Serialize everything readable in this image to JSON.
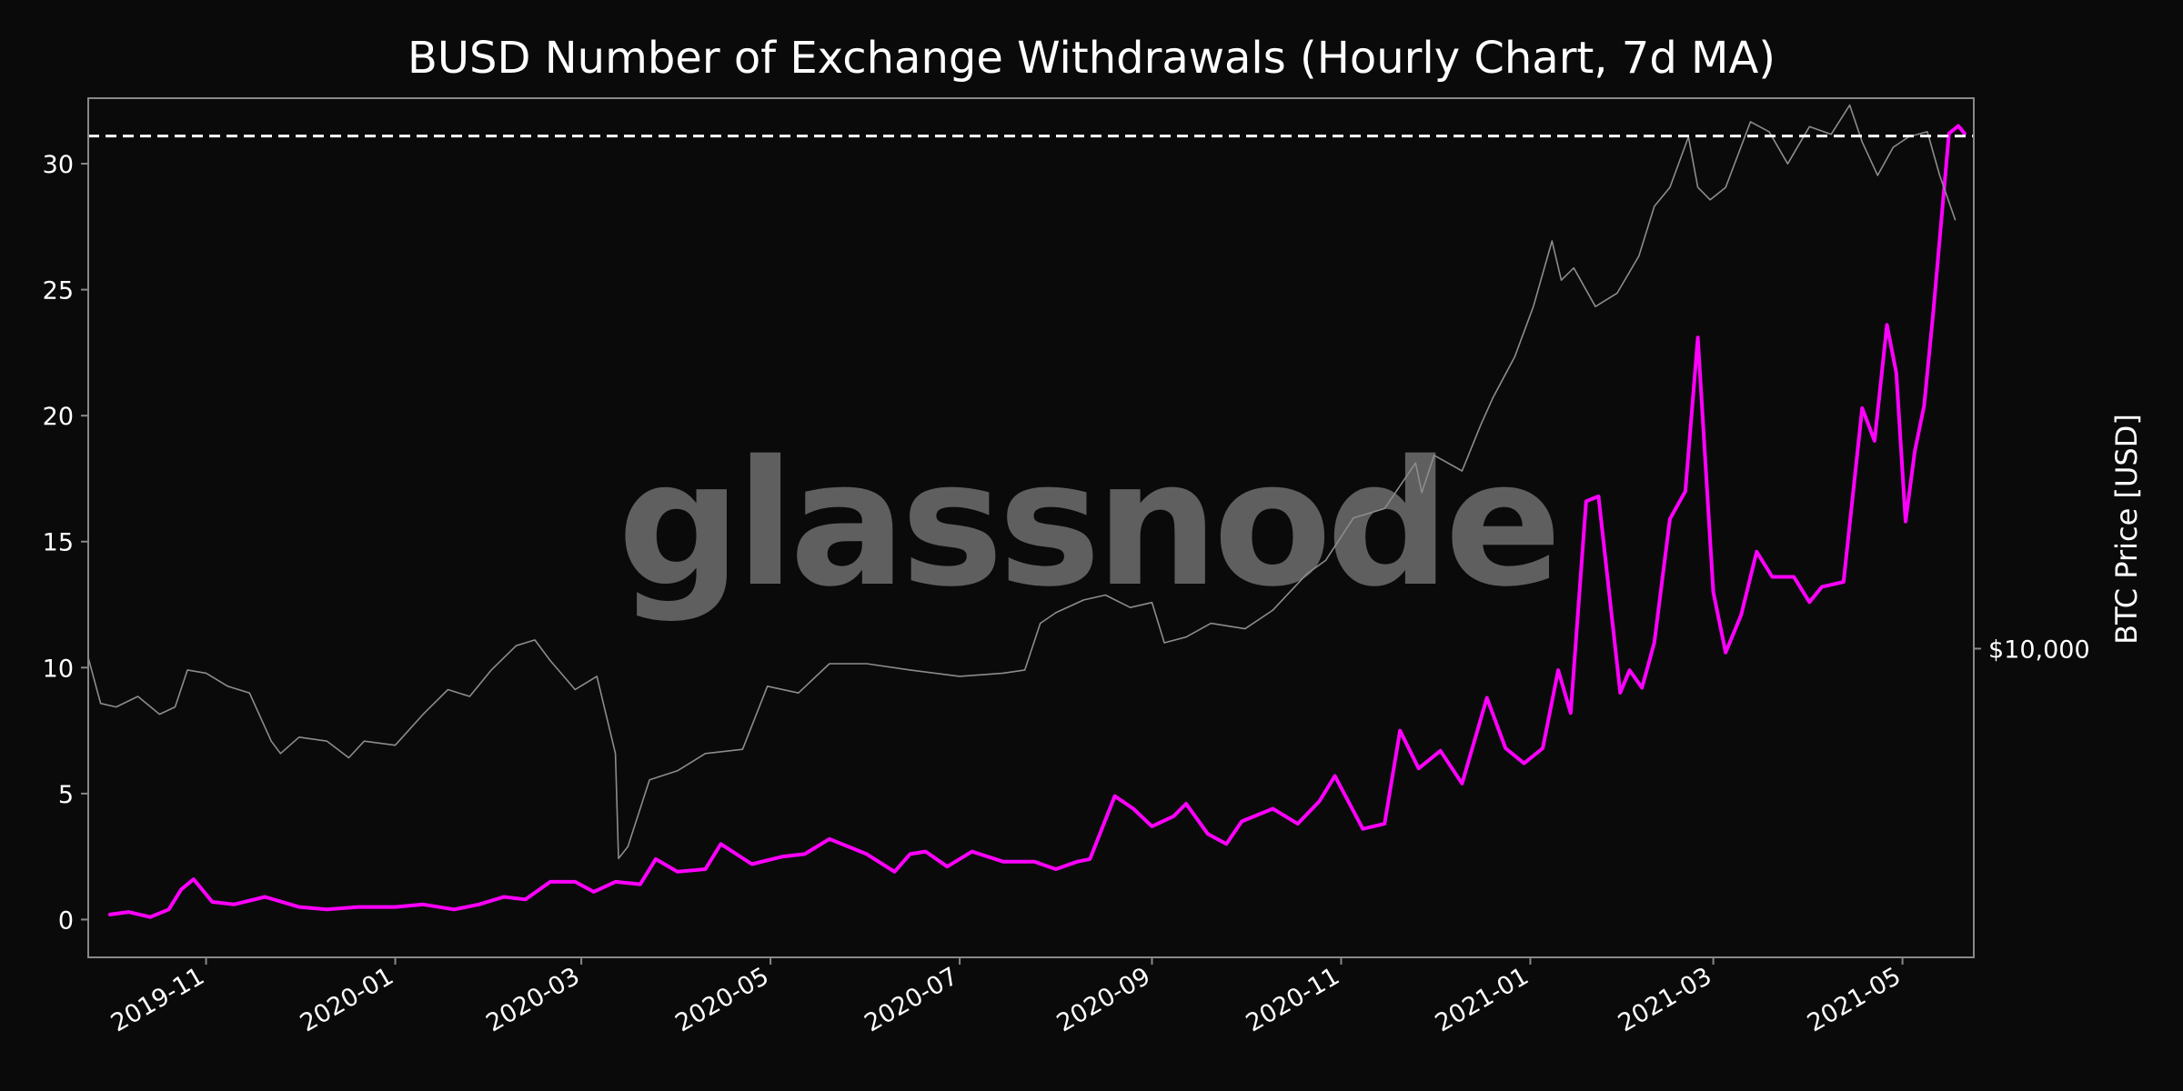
{
  "chart_data": {
    "type": "line",
    "title": "BUSD Number of Exchange Withdrawals (Hourly Chart, 7d MA)",
    "watermark": "glassnode",
    "xlabel": "",
    "ylabel_left": "",
    "ylabel_right": "BTC Price [USD]",
    "y_ticks": [
      "0",
      "5",
      "10",
      "15",
      "20",
      "25",
      "30"
    ],
    "y_tick_values": [
      0,
      5,
      10,
      15,
      20,
      25,
      30
    ],
    "ylim": [
      -1.5,
      32.6
    ],
    "right_ticks": [
      "$10,000"
    ],
    "right_tick_values": [
      10000
    ],
    "btc_log_range": [
      3500,
      65000
    ],
    "x_ticks": [
      "2019-11",
      "2020-01",
      "2020-03",
      "2020-05",
      "2020-07",
      "2020-09",
      "2020-11",
      "2021-01",
      "2021-03",
      "2021-05"
    ],
    "x_tick_dates": [
      "2019-11-01",
      "2020-01-01",
      "2020-03-01",
      "2020-05-01",
      "2020-07-01",
      "2020-09-01",
      "2020-11-01",
      "2021-01-01",
      "2021-03-01",
      "2021-05-01"
    ],
    "xlim": [
      "2019-09-24",
      "2021-05-24"
    ],
    "ath_line": {
      "value": 31.1,
      "style": "dashed"
    },
    "grid": false,
    "legend": "none",
    "colors": {
      "background": "#0a0a0a",
      "withdrawals": "#ff00ff",
      "btc_price": "#8c8c8c",
      "ath": "#ffffff",
      "frame": "#888888"
    },
    "series": [
      {
        "key": "withdrawals",
        "x": [
          "2019-10-01",
          "2019-10-07",
          "2019-10-14",
          "2019-10-20",
          "2019-10-24",
          "2019-10-28",
          "2019-11-03",
          "2019-11-10",
          "2019-11-20",
          "2019-12-01",
          "2019-12-10",
          "2019-12-20",
          "2020-01-01",
          "2020-01-10",
          "2020-01-20",
          "2020-01-28",
          "2020-02-05",
          "2020-02-12",
          "2020-02-20",
          "2020-02-28",
          "2020-03-05",
          "2020-03-12",
          "2020-03-20",
          "2020-03-25",
          "2020-04-01",
          "2020-04-10",
          "2020-04-15",
          "2020-04-25",
          "2020-05-05",
          "2020-05-12",
          "2020-05-20",
          "2020-06-01",
          "2020-06-10",
          "2020-06-15",
          "2020-06-20",
          "2020-06-27",
          "2020-07-05",
          "2020-07-15",
          "2020-07-25",
          "2020-08-01",
          "2020-08-08",
          "2020-08-12",
          "2020-08-20",
          "2020-08-26",
          "2020-09-01",
          "2020-09-08",
          "2020-09-12",
          "2020-09-19",
          "2020-09-25",
          "2020-09-30",
          "2020-10-10",
          "2020-10-18",
          "2020-10-25",
          "2020-10-30",
          "2020-11-08",
          "2020-11-15",
          "2020-11-20",
          "2020-11-26",
          "2020-12-03",
          "2020-12-10",
          "2020-12-18",
          "2020-12-24",
          "2020-12-30",
          "2021-01-05",
          "2021-01-10",
          "2021-01-14",
          "2021-01-19",
          "2021-01-23",
          "2021-01-30",
          "2021-02-02",
          "2021-02-06",
          "2021-02-10",
          "2021-02-15",
          "2021-02-20",
          "2021-02-24",
          "2021-03-01",
          "2021-03-05",
          "2021-03-10",
          "2021-03-15",
          "2021-03-20",
          "2021-03-27",
          "2021-04-01",
          "2021-04-05",
          "2021-04-12",
          "2021-04-18",
          "2021-04-22",
          "2021-04-26",
          "2021-04-29",
          "2021-05-02",
          "2021-05-05",
          "2021-05-08",
          "2021-05-11",
          "2021-05-16",
          "2021-05-19",
          "2021-05-21"
        ],
        "values": [
          0.2,
          0.3,
          0.1,
          0.4,
          1.2,
          1.6,
          0.7,
          0.6,
          0.9,
          0.5,
          0.4,
          0.5,
          0.5,
          0.6,
          0.4,
          0.6,
          0.9,
          0.8,
          1.5,
          1.5,
          1.1,
          1.5,
          1.4,
          2.4,
          1.9,
          2.0,
          3.0,
          2.2,
          2.5,
          2.6,
          3.2,
          2.6,
          1.9,
          2.6,
          2.7,
          2.1,
          2.7,
          2.3,
          2.3,
          2.0,
          2.3,
          2.4,
          4.9,
          4.4,
          3.7,
          4.1,
          4.6,
          3.4,
          3.0,
          3.9,
          4.4,
          3.8,
          4.7,
          5.7,
          3.6,
          3.8,
          7.5,
          6.0,
          6.7,
          5.4,
          8.8,
          6.8,
          6.2,
          6.8,
          9.9,
          8.2,
          16.6,
          16.8,
          9.0,
          9.9,
          9.2,
          11.0,
          15.9,
          17.0,
          23.1,
          13.0,
          10.6,
          12.1,
          14.6,
          13.6,
          13.6,
          12.6,
          13.2,
          13.4,
          20.3,
          19.0,
          23.6,
          21.7,
          15.8,
          18.6,
          20.4,
          24.2,
          31.2,
          31.5,
          31.2
        ]
      },
      {
        "key": "btc_price",
        "x": [
          "2019-09-24",
          "2019-09-28",
          "2019-10-03",
          "2019-10-10",
          "2019-10-17",
          "2019-10-22",
          "2019-10-26",
          "2019-11-01",
          "2019-11-08",
          "2019-11-15",
          "2019-11-22",
          "2019-11-25",
          "2019-12-01",
          "2019-12-10",
          "2019-12-17",
          "2019-12-22",
          "2020-01-01",
          "2020-01-10",
          "2020-01-18",
          "2020-01-25",
          "2020-02-01",
          "2020-02-09",
          "2020-02-15",
          "2020-02-20",
          "2020-02-28",
          "2020-03-06",
          "2020-03-12",
          "2020-03-13",
          "2020-03-16",
          "2020-03-23",
          "2020-04-01",
          "2020-04-10",
          "2020-04-22",
          "2020-04-30",
          "2020-05-10",
          "2020-05-20",
          "2020-06-01",
          "2020-06-15",
          "2020-07-01",
          "2020-07-15",
          "2020-07-22",
          "2020-07-27",
          "2020-08-01",
          "2020-08-10",
          "2020-08-17",
          "2020-08-25",
          "2020-09-01",
          "2020-09-05",
          "2020-09-12",
          "2020-09-20",
          "2020-10-01",
          "2020-10-10",
          "2020-10-21",
          "2020-10-27",
          "2020-11-05",
          "2020-11-15",
          "2020-11-25",
          "2020-11-27",
          "2020-12-01",
          "2020-12-10",
          "2020-12-16",
          "2020-12-20",
          "2020-12-27",
          "2021-01-02",
          "2021-01-08",
          "2021-01-11",
          "2021-01-15",
          "2021-01-22",
          "2021-01-29",
          "2021-02-05",
          "2021-02-10",
          "2021-02-15",
          "2021-02-21",
          "2021-02-24",
          "2021-02-28",
          "2021-03-05",
          "2021-03-13",
          "2021-03-19",
          "2021-03-25",
          "2021-04-01",
          "2021-04-08",
          "2021-04-14",
          "2021-04-18",
          "2021-04-23",
          "2021-04-28",
          "2021-05-03",
          "2021-05-09",
          "2021-05-13",
          "2021-05-18"
        ],
        "values": [
          9700,
          8300,
          8200,
          8500,
          8000,
          8200,
          9300,
          9200,
          8800,
          8600,
          7300,
          7000,
          7400,
          7300,
          6900,
          7300,
          7200,
          8000,
          8700,
          8500,
          9300,
          10100,
          10300,
          9600,
          8700,
          9100,
          7000,
          4900,
          5100,
          6400,
          6600,
          7000,
          7100,
          8800,
          8600,
          9500,
          9500,
          9300,
          9100,
          9200,
          9300,
          10900,
          11300,
          11800,
          12000,
          11500,
          11700,
          10200,
          10400,
          10900,
          10700,
          11400,
          12900,
          13500,
          15600,
          16100,
          18800,
          17000,
          19300,
          18300,
          21400,
          23500,
          27000,
          32000,
          40000,
          35000,
          36500,
          32000,
          33500,
          38000,
          45000,
          48000,
          57000,
          48000,
          46000,
          48000,
          60000,
          58000,
          52000,
          59000,
          57500,
          63500,
          56000,
          50000,
          55000,
          57000,
          58000,
          50000,
          43000
        ]
      }
    ]
  }
}
